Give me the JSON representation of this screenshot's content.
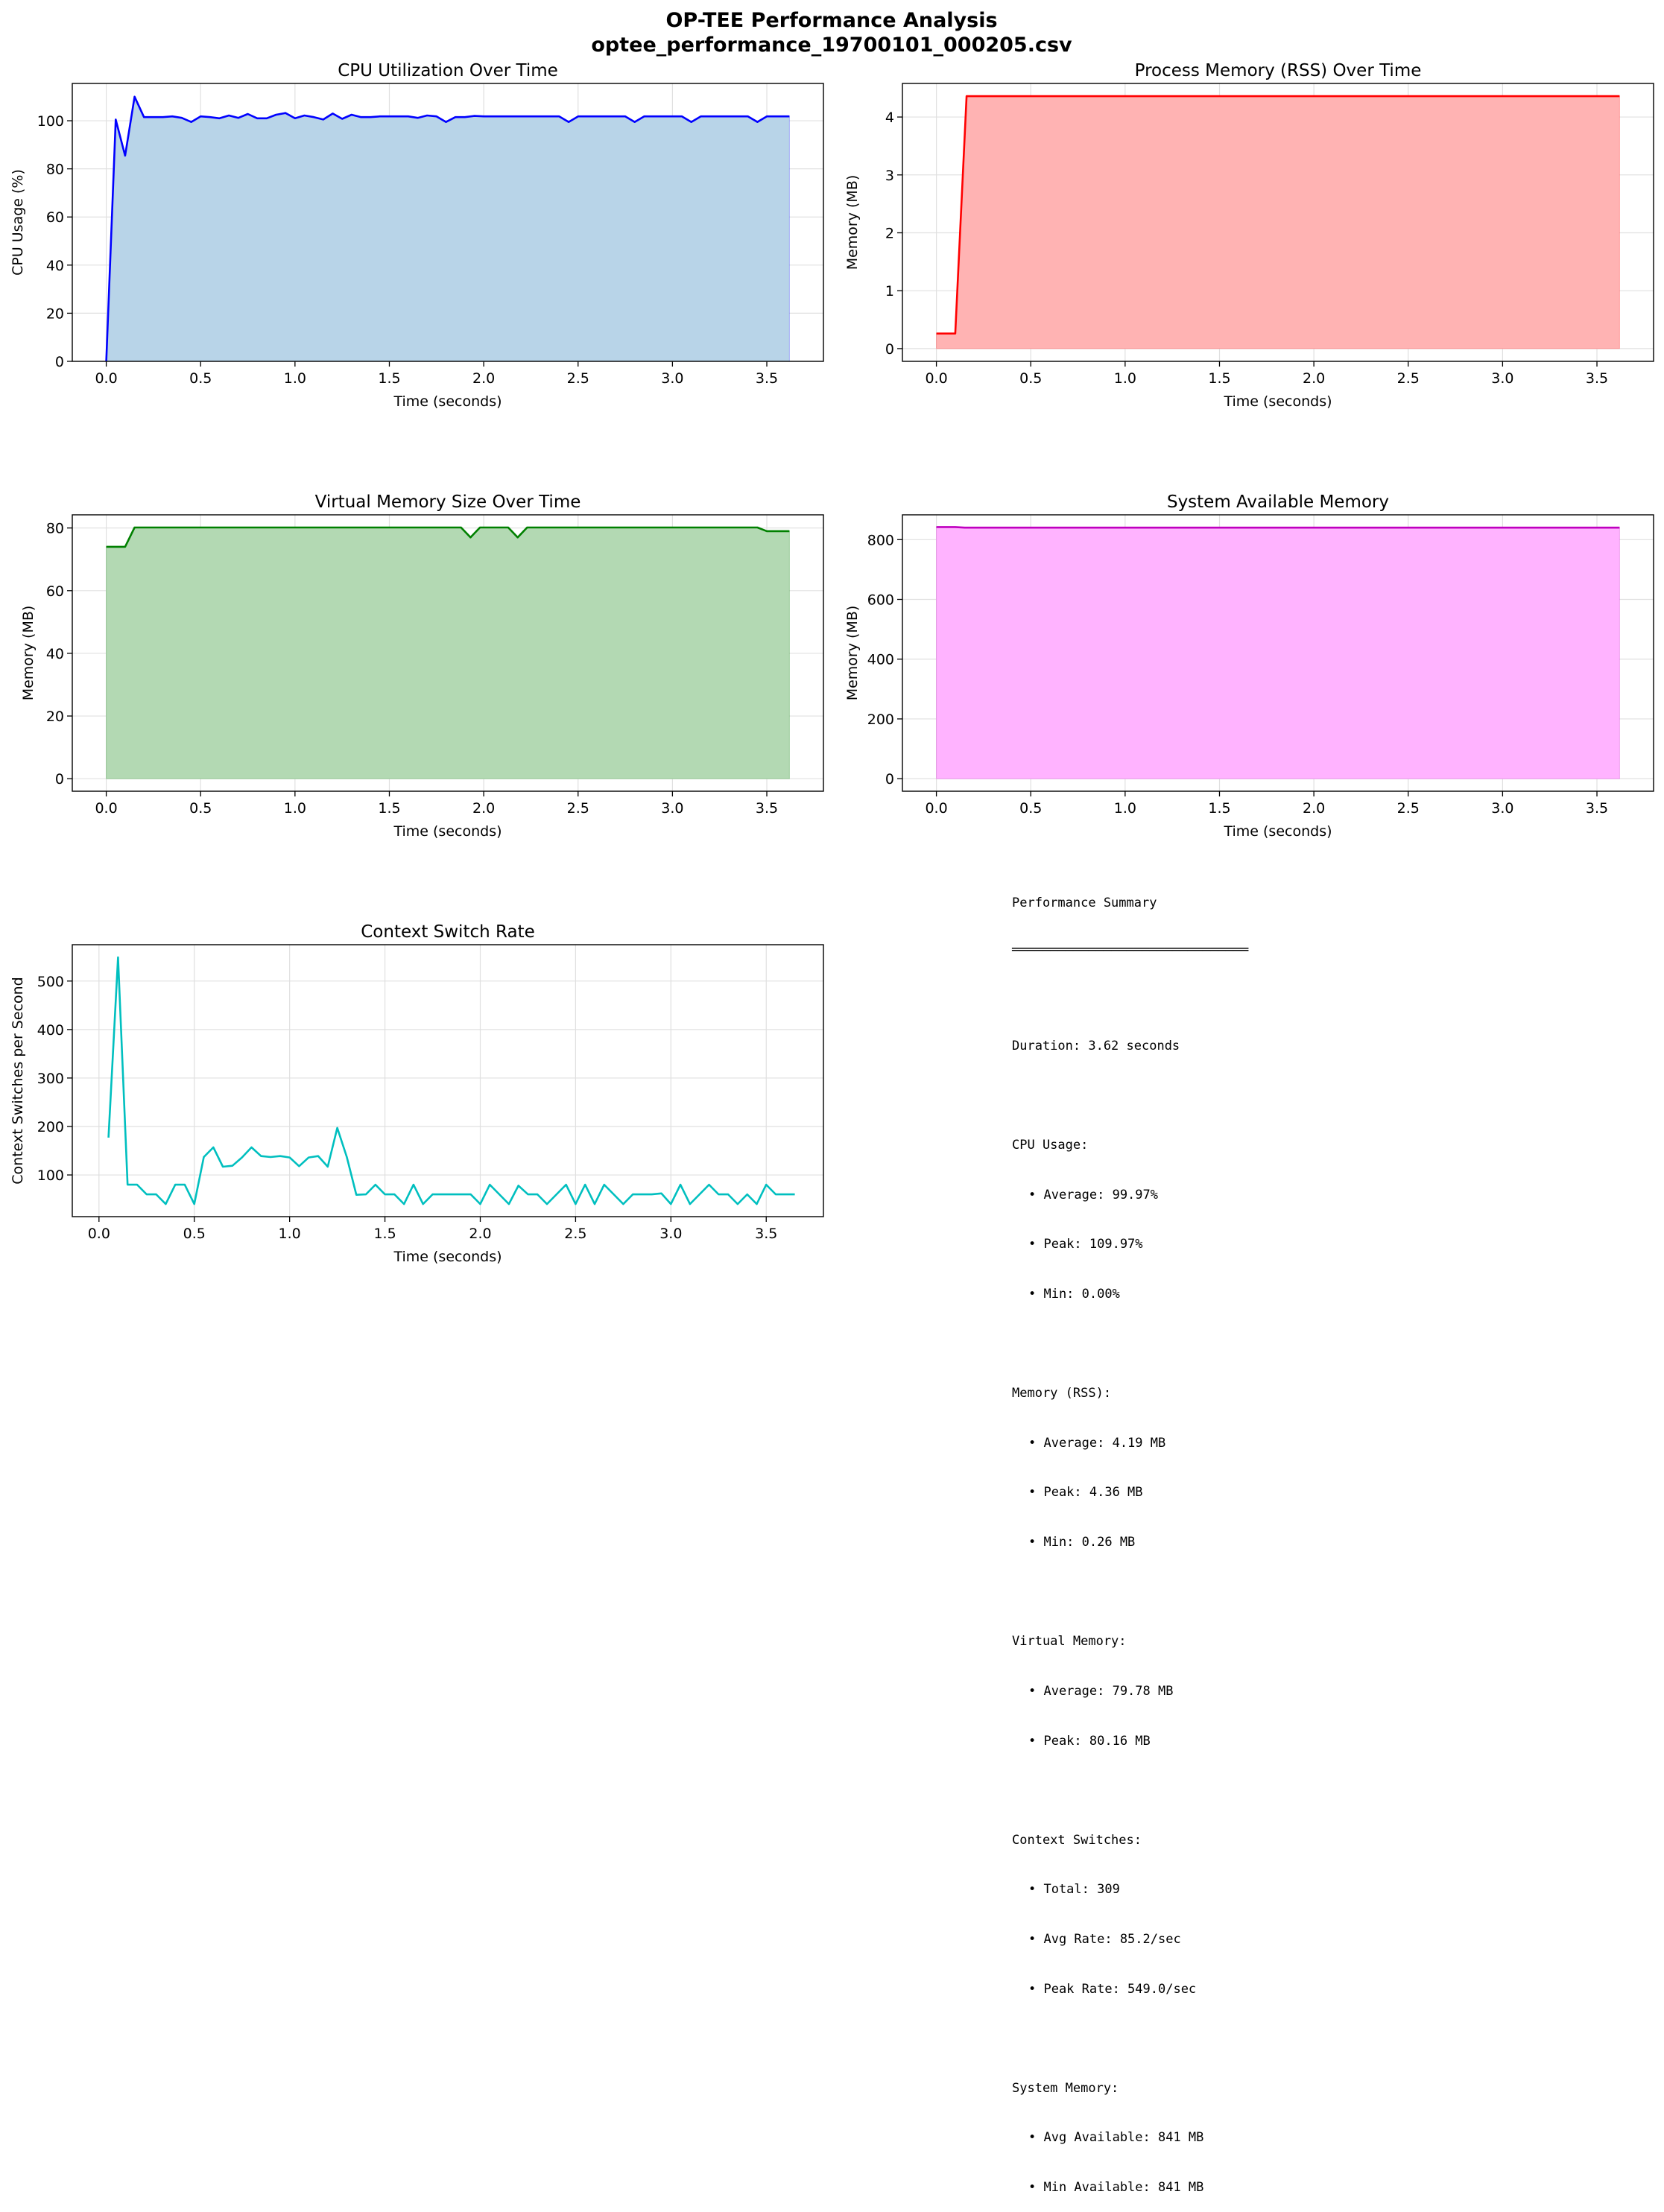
{
  "title": "OP-TEE Performance Analysis",
  "subtitle": "optee_performance_19700101_000205.csv",
  "chart_data": [
    {
      "type": "area",
      "title": "CPU Utilization Over Time",
      "xlabel": "Time (seconds)",
      "ylabel": "CPU Usage (%)",
      "xlim": [
        -0.18,
        3.8
      ],
      "ylim": [
        0,
        115.5
      ],
      "xticks": [
        "0.0",
        "0.5",
        "1.0",
        "1.5",
        "2.0",
        "2.5",
        "3.0",
        "3.5"
      ],
      "yticks": [
        "0",
        "20",
        "40",
        "60",
        "80",
        "100"
      ],
      "color": "#0000ff",
      "fill": "#b8d4e8",
      "x": [
        0,
        0.05,
        0.1,
        0.15,
        0.2,
        0.25,
        0.3,
        0.35,
        0.4,
        0.45,
        0.5,
        0.55,
        0.6,
        0.65,
        0.7,
        0.75,
        0.8,
        0.85,
        0.9,
        0.95,
        1.0,
        1.05,
        1.1,
        1.15,
        1.2,
        1.25,
        1.3,
        1.35,
        1.4,
        1.45,
        1.5,
        1.55,
        1.6,
        1.65,
        1.7,
        1.75,
        1.8,
        1.85,
        1.9,
        1.95,
        2.0,
        2.05,
        2.1,
        2.15,
        2.2,
        2.25,
        2.3,
        2.35,
        2.4,
        2.45,
        2.5,
        2.55,
        2.6,
        2.65,
        2.7,
        2.75,
        2.8,
        2.85,
        2.9,
        2.95,
        3.0,
        3.05,
        3.1,
        3.15,
        3.2,
        3.25,
        3.3,
        3.35,
        3.4,
        3.45,
        3.5,
        3.55,
        3.62
      ],
      "y": [
        0,
        100.5,
        85.5,
        110,
        101.5,
        101.5,
        101.5,
        101.8,
        101.2,
        99.5,
        101.8,
        101.5,
        101,
        102.2,
        101.2,
        102.8,
        101,
        101,
        102.5,
        103.2,
        101,
        102.2,
        101.5,
        100.5,
        103,
        100.8,
        102.5,
        101.5,
        101.5,
        101.8,
        101.8,
        101.8,
        101.8,
        101.2,
        102.2,
        101.8,
        99.5,
        101.5,
        101.5,
        102,
        101.8,
        101.8,
        101.8,
        101.8,
        101.8,
        101.8,
        101.8,
        101.8,
        101.8,
        99.5,
        101.8,
        101.8,
        101.8,
        101.8,
        101.8,
        101.8,
        99.5,
        101.8,
        101.8,
        101.8,
        101.8,
        101.8,
        99.5,
        101.8,
        101.8,
        101.8,
        101.8,
        101.8,
        101.8,
        99.5,
        101.8,
        101.8,
        101.8
      ]
    },
    {
      "type": "area",
      "title": "Process Memory (RSS) Over Time",
      "xlabel": "Time (seconds)",
      "ylabel": "Memory (MB)",
      "xlim": [
        -0.18,
        3.8
      ],
      "ylim": [
        -0.22,
        4.58
      ],
      "xticks": [
        "0.0",
        "0.5",
        "1.0",
        "1.5",
        "2.0",
        "2.5",
        "3.0",
        "3.5"
      ],
      "yticks": [
        "0",
        "1",
        "2",
        "3",
        "4"
      ],
      "color": "#ff0000",
      "fill": "#ffb3b3",
      "x": [
        0,
        0.1,
        0.16,
        0.5,
        1.0,
        1.5,
        2.0,
        2.5,
        3.0,
        3.62
      ],
      "y": [
        0.26,
        0.26,
        4.36,
        4.36,
        4.36,
        4.36,
        4.36,
        4.36,
        4.36,
        4.36
      ]
    },
    {
      "type": "area",
      "title": "Virtual Memory Size Over Time",
      "xlabel": "Time (seconds)",
      "ylabel": "Memory (MB)",
      "xlim": [
        -0.18,
        3.8
      ],
      "ylim": [
        -4.0,
        84.2
      ],
      "xticks": [
        "0.0",
        "0.5",
        "1.0",
        "1.5",
        "2.0",
        "2.5",
        "3.0",
        "3.5"
      ],
      "yticks": [
        "0",
        "20",
        "40",
        "60",
        "80"
      ],
      "color": "#008000",
      "fill": "#b3d9b3",
      "x": [
        0,
        0.1,
        0.15,
        0.5,
        1.0,
        1.5,
        1.88,
        1.93,
        1.98,
        2.13,
        2.18,
        2.23,
        2.5,
        3.0,
        3.45,
        3.5,
        3.62
      ],
      "y": [
        74,
        74,
        80.16,
        80.16,
        80.16,
        80.16,
        80.16,
        77,
        80.16,
        80.16,
        77,
        80.16,
        80.16,
        80.16,
        80.16,
        79,
        79
      ]
    },
    {
      "type": "area",
      "title": "System Available Memory",
      "xlabel": "Time (seconds)",
      "ylabel": "Memory (MB)",
      "xlim": [
        -0.18,
        3.8
      ],
      "ylim": [
        -42,
        883
      ],
      "xticks": [
        "0.0",
        "0.5",
        "1.0",
        "1.5",
        "2.0",
        "2.5",
        "3.0",
        "3.5"
      ],
      "yticks": [
        "0",
        "200",
        "400",
        "600",
        "800"
      ],
      "color": "#bf00bf",
      "fill": "#ffb3ff",
      "x": [
        0,
        0.1,
        0.15,
        0.5,
        1.0,
        1.5,
        2.0,
        2.5,
        3.0,
        3.62
      ],
      "y": [
        842,
        842,
        840,
        840,
        840,
        840,
        840,
        840,
        840,
        840
      ]
    },
    {
      "type": "line",
      "title": "Context Switch Rate",
      "xlabel": "Time (seconds)",
      "ylabel": "Context Switches per Second",
      "xlim": [
        -0.14,
        3.8
      ],
      "ylim": [
        14,
        575
      ],
      "xticks": [
        "0.0",
        "0.5",
        "1.0",
        "1.5",
        "2.0",
        "2.5",
        "3.0",
        "3.5"
      ],
      "yticks": [
        "100",
        "200",
        "300",
        "400",
        "500"
      ],
      "color": "#00bfbf",
      "x": [
        0.05,
        0.1,
        0.15,
        0.2,
        0.25,
        0.3,
        0.35,
        0.4,
        0.45,
        0.5,
        0.55,
        0.6,
        0.65,
        0.7,
        0.75,
        0.8,
        0.85,
        0.9,
        0.95,
        1.0,
        1.05,
        1.1,
        1.15,
        1.2,
        1.25,
        1.3,
        1.35,
        1.4,
        1.45,
        1.5,
        1.55,
        1.6,
        1.65,
        1.7,
        1.75,
        1.8,
        1.85,
        1.9,
        1.95,
        2.0,
        2.05,
        2.1,
        2.15,
        2.2,
        2.25,
        2.3,
        2.35,
        2.4,
        2.45,
        2.5,
        2.55,
        2.6,
        2.65,
        2.7,
        2.75,
        2.8,
        2.85,
        2.9,
        2.95,
        3.0,
        3.05,
        3.1,
        3.15,
        3.2,
        3.25,
        3.3,
        3.35,
        3.4,
        3.45,
        3.5,
        3.55,
        3.6,
        3.65
      ],
      "y": [
        177,
        549,
        80,
        80,
        60,
        60,
        40,
        80,
        80,
        40,
        137,
        157,
        117,
        119,
        136,
        157,
        139,
        137,
        139,
        136,
        118,
        136,
        139,
        117,
        197,
        137,
        59,
        60,
        80,
        60,
        60,
        40,
        80,
        40,
        60,
        60,
        60,
        60,
        60,
        40,
        80,
        60,
        40,
        78,
        60,
        60,
        40,
        60,
        80,
        40,
        80,
        40,
        80,
        60,
        40,
        60,
        60,
        60,
        62,
        40,
        80,
        40,
        60,
        80,
        60,
        60,
        40,
        60,
        40,
        80,
        60,
        60,
        60
      ]
    }
  ],
  "summary": {
    "heading": "Performance Summary",
    "underline": "═══════════════════════════════",
    "duration": "Duration: 3.62 seconds",
    "cpu_header": "CPU Usage:",
    "cpu_avg": "• Average: 99.97%",
    "cpu_peak": "• Peak: 109.97%",
    "cpu_min": "• Min: 0.00%",
    "rss_header": "Memory (RSS):",
    "rss_avg": "• Average: 4.19 MB",
    "rss_peak": "• Peak: 4.36 MB",
    "rss_min": "• Min: 0.26 MB",
    "vm_header": "Virtual Memory:",
    "vm_avg": "• Average: 79.78 MB",
    "vm_peak": "• Peak: 80.16 MB",
    "cs_header": "Context Switches:",
    "cs_total": "• Total: 309",
    "cs_avg": "• Avg Rate: 85.2/sec",
    "cs_peak": "• Peak Rate: 549.0/sec",
    "sys_header": "System Memory:",
    "sys_avg": "• Avg Available: 841 MB",
    "sys_min": "• Min Available: 841 MB"
  }
}
